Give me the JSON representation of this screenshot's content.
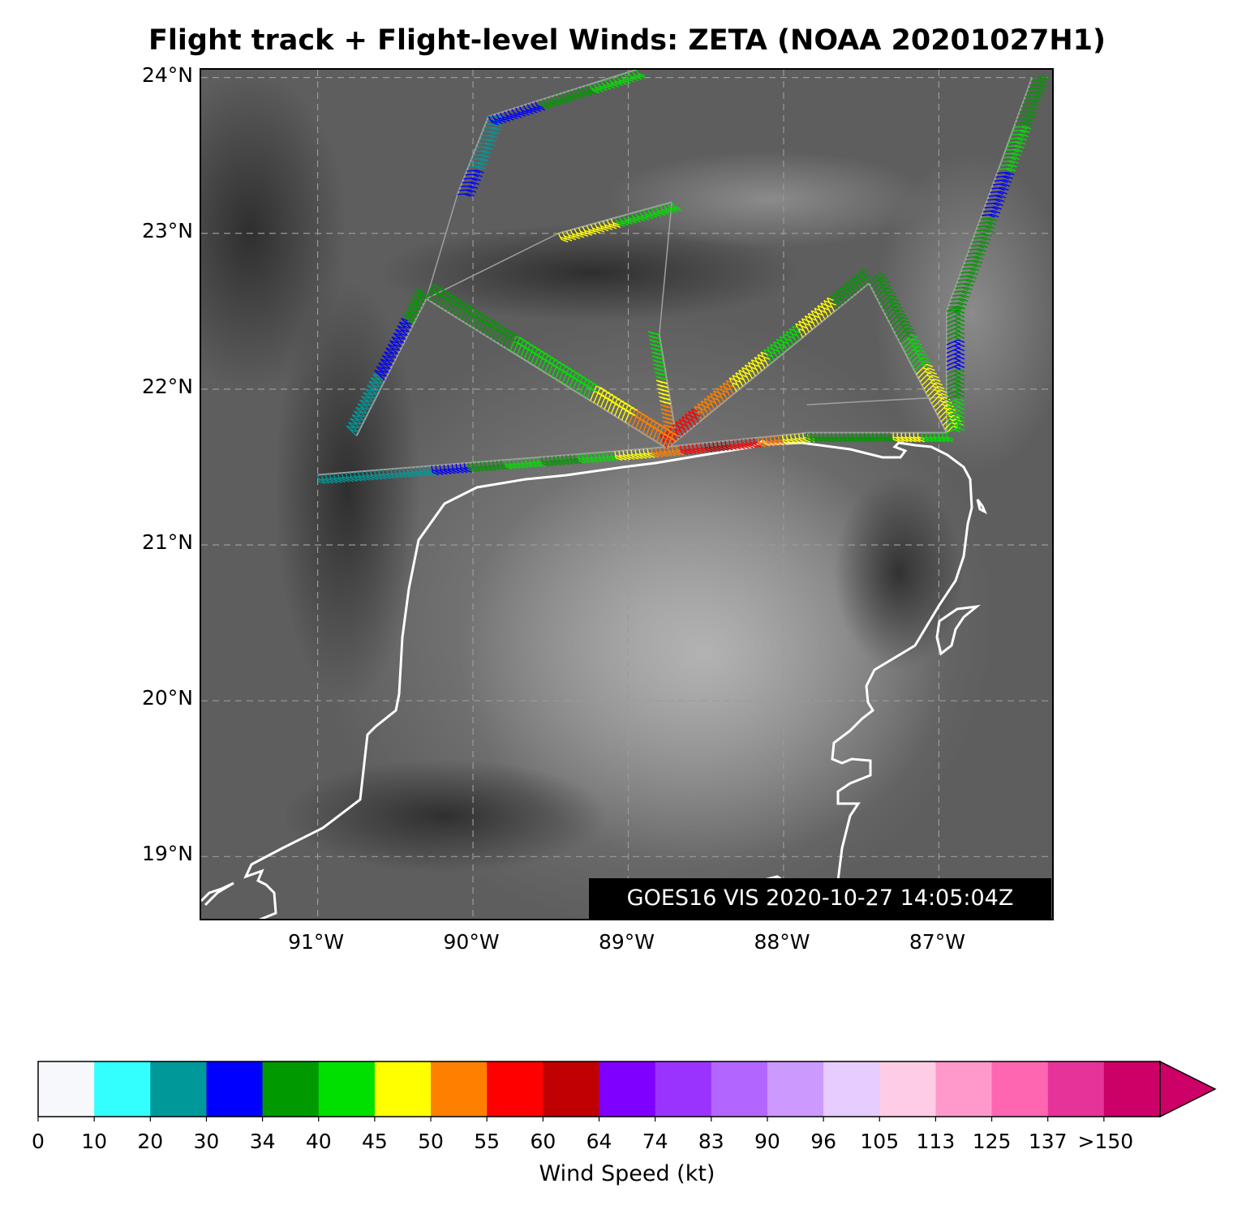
{
  "title": "Flight track + Flight-level Winds: ZETA (NOAA 20201027H1)",
  "map": {
    "lat_range": [
      18.58,
      24.05
    ],
    "lon_range": [
      -91.75,
      -86.25
    ],
    "lat_ticks": [
      {
        "value": 19,
        "label": "19°N"
      },
      {
        "value": 20,
        "label": "20°N"
      },
      {
        "value": 21,
        "label": "21°N"
      },
      {
        "value": 22,
        "label": "22°N"
      },
      {
        "value": 23,
        "label": "23°N"
      },
      {
        "value": 24,
        "label": "24°N"
      }
    ],
    "lon_ticks": [
      {
        "value": -91,
        "label": "91°W"
      },
      {
        "value": -90,
        "label": "90°W"
      },
      {
        "value": -89,
        "label": "89°W"
      },
      {
        "value": -88,
        "label": "88°W"
      },
      {
        "value": -87,
        "label": "87°W"
      }
    ],
    "grid": true,
    "background": "satellite visible imagery (grayscale)",
    "coastline_color": "#ffffff",
    "timestamp_label": "GOES16 VIS 2020-10-27 14:05:04Z",
    "flight_track": {
      "track_color": "#a0a0a0",
      "legs": [
        {
          "from": [
            -91.0,
            21.45
          ],
          "to": [
            -88.85,
            21.62
          ],
          "winds_kt": [
            22,
            20,
            25,
            32,
            36,
            42,
            38,
            44,
            48
          ]
        },
        {
          "from": [
            -88.85,
            21.62
          ],
          "to": [
            -87.85,
            21.72
          ],
          "winds_kt": [
            50,
            56,
            62,
            58,
            52,
            47
          ]
        },
        {
          "from": [
            -87.85,
            21.72
          ],
          "to": [
            -86.95,
            21.72
          ],
          "winds_kt": [
            38,
            36,
            38,
            47,
            40
          ]
        },
        {
          "from": [
            -86.95,
            21.72
          ],
          "to": [
            -87.45,
            22.68
          ],
          "winds_kt": [
            46,
            48,
            42,
            38,
            36
          ]
        },
        {
          "from": [
            -87.45,
            22.68
          ],
          "to": [
            -88.75,
            21.62
          ],
          "winds_kt": [
            38,
            46,
            42,
            48,
            52,
            56
          ]
        },
        {
          "from": [
            -88.75,
            21.62
          ],
          "to": [
            -90.3,
            22.58
          ],
          "winds_kt": [
            50,
            46,
            42,
            40,
            38,
            36
          ]
        },
        {
          "from": [
            -90.3,
            22.58
          ],
          "to": [
            -90.75,
            21.7
          ],
          "winds_kt": [
            36,
            32,
            30,
            28,
            22
          ]
        },
        {
          "from": [
            -89.45,
            23.0
          ],
          "to": [
            -88.72,
            23.2
          ],
          "winds_kt": [
            46,
            48,
            42,
            40
          ]
        },
        {
          "from": [
            -88.8,
            22.35
          ],
          "to": [
            -88.7,
            21.75
          ],
          "winds_kt": [
            40,
            42,
            46,
            52
          ]
        },
        {
          "from": [
            -90.1,
            23.25
          ],
          "to": [
            -89.9,
            23.75
          ],
          "winds_kt": [
            30,
            28,
            24
          ]
        },
        {
          "from": [
            -89.9,
            23.75
          ],
          "to": [
            -88.95,
            24.05
          ],
          "winds_kt": [
            30,
            36,
            40
          ]
        },
        {
          "from": [
            -86.95,
            21.72
          ],
          "to": [
            -86.95,
            22.5
          ],
          "winds_kt": [
            40,
            38,
            32,
            36
          ]
        },
        {
          "from": [
            -86.95,
            22.5
          ],
          "to": [
            -86.4,
            24.0
          ],
          "winds_kt": [
            36,
            38,
            32,
            40,
            38
          ]
        }
      ]
    }
  },
  "colorbar": {
    "label": "Wind Speed (kt)",
    "bins": [
      {
        "from": 0,
        "to": 10,
        "color": "#f7f8fb"
      },
      {
        "from": 10,
        "to": 20,
        "color": "#33ffff"
      },
      {
        "from": 20,
        "to": 30,
        "color": "#009999"
      },
      {
        "from": 30,
        "to": 34,
        "color": "#0000ff"
      },
      {
        "from": 34,
        "to": 40,
        "color": "#009900"
      },
      {
        "from": 40,
        "to": 45,
        "color": "#00e000"
      },
      {
        "from": 45,
        "to": 50,
        "color": "#ffff00"
      },
      {
        "from": 50,
        "to": 55,
        "color": "#ff8000"
      },
      {
        "from": 55,
        "to": 60,
        "color": "#ff0000"
      },
      {
        "from": 60,
        "to": 64,
        "color": "#c00000"
      },
      {
        "from": 64,
        "to": 74,
        "color": "#8000ff"
      },
      {
        "from": 74,
        "to": 83,
        "color": "#9b33ff"
      },
      {
        "from": 83,
        "to": 90,
        "color": "#b366ff"
      },
      {
        "from": 90,
        "to": 96,
        "color": "#cc99ff"
      },
      {
        "from": 96,
        "to": 105,
        "color": "#e6ccff"
      },
      {
        "from": 105,
        "to": 113,
        "color": "#ffcce6"
      },
      {
        "from": 113,
        "to": 125,
        "color": "#ff99cc"
      },
      {
        "from": 125,
        "to": 137,
        "color": "#ff66b2"
      },
      {
        "from": 137,
        "to": 150,
        "color": "#e63399"
      },
      {
        "from": 150,
        "to": null,
        "color": "#cc0066"
      }
    ],
    "extend_color": "#cc0066",
    "tick_labels": [
      "0",
      "10",
      "20",
      "30",
      "34",
      "40",
      "45",
      "50",
      "55",
      "60",
      "64",
      "74",
      "83",
      "90",
      "96",
      "105",
      "113",
      "125",
      "137",
      ">150"
    ]
  }
}
